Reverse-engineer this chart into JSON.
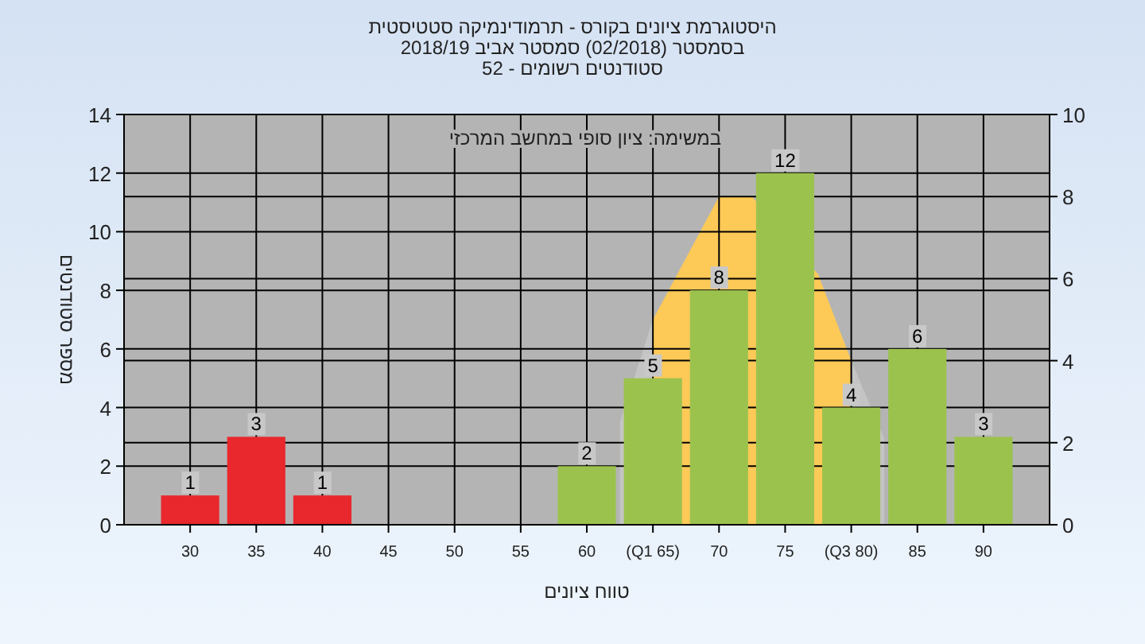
{
  "chart_data": {
    "type": "bar",
    "title": "היסטוגרמת ציונים בקורס - תרמודינמיקה סטטיסטית",
    "subtitle": "בסמסטר  (02/2018)  סמסטר אביב 2018/19\nסטודנטים רשומים - 52",
    "xlabel": "טווח ציונים",
    "ylabel": "מספר סטודנטים",
    "annotations": [
      "במשימה: ציון סופי במחשב המרכזי"
    ],
    "xlim": [
      25,
      95
    ],
    "xticks": [
      30,
      35,
      40,
      45,
      50,
      55,
      60,
      {
        "value": 65,
        "label": "(Q1 65)"
      },
      70,
      75,
      {
        "value": 80,
        "label": "(Q3 80)"
      },
      85,
      90
    ],
    "ylim": [
      0,
      14
    ],
    "yticks": [
      0,
      2,
      4,
      6,
      8,
      10,
      12,
      14
    ],
    "y2lim": [
      0,
      10
    ],
    "y2ticks": [
      0,
      2,
      4,
      6,
      8,
      10
    ],
    "grid": true,
    "series": [
      {
        "type": "area",
        "axis": "y2",
        "color": "#c4c4c4",
        "x": [
          62.5,
          65
        ],
        "values": [
          2.5,
          5
        ]
      },
      {
        "type": "area",
        "axis": "y2",
        "color": "#fdc957",
        "x": [
          65,
          70,
          72.5,
          77.5,
          80
        ],
        "values": [
          5,
          8,
          8,
          6.1,
          4
        ]
      },
      {
        "type": "area",
        "axis": "y2",
        "color": "#c4c4c4",
        "x": [
          80,
          82.5
        ],
        "values": [
          4,
          2.1
        ]
      },
      {
        "x": [
          30,
          35,
          40,
          60,
          65,
          70,
          75,
          80,
          85,
          90
        ],
        "values": [
          1,
          3,
          1,
          2,
          5,
          8,
          12,
          4,
          6,
          3
        ],
        "value_labels": [
          "1",
          "3",
          "1",
          "2",
          "5",
          "8",
          "12",
          "4",
          "6",
          "3"
        ],
        "colors": [
          "#e8282c",
          "#e8282c",
          "#e8282c",
          "#9cc24e",
          "#9cc24e",
          "#9cc24e",
          "#9cc24e",
          "#9cc24e",
          "#9cc24e",
          "#9cc24e"
        ]
      }
    ]
  }
}
